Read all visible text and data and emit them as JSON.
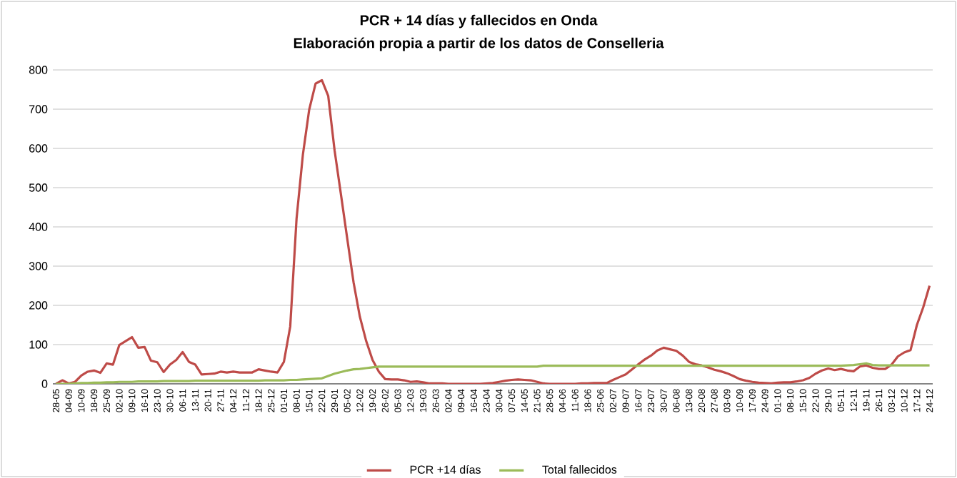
{
  "chart_data": {
    "type": "line",
    "title": "PCR + 14 días y fallecidos en Onda",
    "subtitle": "Elaboración propia a partir de los datos de Conselleria",
    "categories": [
      "28-05",
      null,
      "04-09",
      null,
      "10-09",
      null,
      "18-09",
      null,
      "25-09",
      null,
      "02-10",
      null,
      "09-10",
      null,
      "16-10",
      null,
      "23-10",
      null,
      "30-10",
      null,
      "06-11",
      null,
      "13-11",
      null,
      "20-11",
      null,
      "27-11",
      null,
      "04-12",
      null,
      "11-12",
      null,
      "18-12",
      null,
      "25-12",
      null,
      "01-01",
      null,
      "08-01",
      null,
      "15-01",
      null,
      "22-01",
      null,
      "29-01",
      null,
      "05-02",
      null,
      "12-02",
      null,
      "19-02",
      null,
      "26-02",
      null,
      "05-03",
      null,
      "12-03",
      null,
      "19-03",
      null,
      "26-03",
      null,
      "02-04",
      null,
      "09-04",
      null,
      "16-04",
      null,
      "23-04",
      null,
      "30-04",
      null,
      "07-05",
      null,
      "14-05",
      null,
      "21-05",
      null,
      "28-05",
      null,
      "04-06",
      null,
      "11-06",
      null,
      "18-06",
      null,
      "25-06",
      null,
      "02-07",
      null,
      "09-07",
      null,
      "16-07",
      null,
      "23-07",
      null,
      "30-07",
      null,
      "06-08",
      null,
      "13-08",
      null,
      "20-08",
      null,
      "27-08",
      null,
      "03-09",
      null,
      "10-09",
      null,
      "17-09",
      null,
      "24-09",
      null,
      "01-10",
      null,
      "08-10",
      null,
      "15-10",
      null,
      "22-10",
      null,
      "29-10",
      null,
      "05-11",
      null,
      "12-11",
      null,
      "19-11",
      null,
      "26-11",
      null,
      "03-12",
      null,
      "10-12",
      null,
      "17-12",
      null,
      "24-12"
    ],
    "series": [
      {
        "name": "PCR +14 días",
        "color": "#be4b48",
        "values": [
          0,
          9,
          1,
          5,
          21,
          31,
          34,
          28,
          52,
          49,
          99,
          109,
          119,
          92,
          94,
          59,
          55,
          30,
          49,
          61,
          81,
          56,
          49,
          24,
          25,
          26,
          31,
          29,
          31,
          29,
          29,
          29,
          37,
          34,
          31,
          29,
          56,
          146,
          421,
          584,
          699,
          765,
          774,
          734,
          596,
          484,
          371,
          259,
          171,
          109,
          61,
          31,
          12,
          11,
          11,
          9,
          5,
          6,
          4,
          1,
          1,
          1,
          0,
          0,
          0,
          0,
          0,
          0,
          1,
          2,
          5,
          8,
          10,
          11,
          10,
          9,
          5,
          1,
          0,
          0,
          0,
          0,
          0,
          1,
          1,
          2,
          2,
          2,
          10,
          17,
          24,
          37,
          50,
          62,
          72,
          85,
          92,
          88,
          84,
          72,
          56,
          50,
          47,
          42,
          36,
          32,
          27,
          20,
          12,
          8,
          5,
          3,
          2,
          1,
          3,
          4,
          4,
          6,
          9,
          15,
          26,
          34,
          39,
          35,
          38,
          34,
          32,
          44,
          47,
          41,
          38,
          38,
          49,
          70,
          80,
          86,
          150,
          195,
          250
        ]
      },
      {
        "name": "Total fallecidos",
        "color": "#9bbb59",
        "values": [
          0,
          0,
          0,
          1,
          2,
          2,
          3,
          3,
          4,
          4,
          5,
          5,
          5,
          6,
          6,
          6,
          6,
          7,
          7,
          7,
          7,
          7,
          8,
          8,
          8,
          8,
          8,
          8,
          8,
          8,
          8,
          8,
          8,
          9,
          9,
          9,
          9,
          10,
          10,
          11,
          12,
          13,
          14,
          20,
          26,
          30,
          34,
          37,
          38,
          40,
          42,
          44,
          44,
          44,
          44,
          44,
          44,
          44,
          44,
          44,
          44,
          44,
          44,
          44,
          44,
          44,
          44,
          44,
          44,
          44,
          44,
          44,
          44,
          44,
          44,
          44,
          44,
          46,
          46,
          46,
          46,
          46,
          46,
          46,
          46,
          46,
          46,
          46,
          46,
          46,
          46,
          46,
          46,
          46,
          46,
          46,
          46,
          46,
          46,
          46,
          46,
          46,
          46,
          46,
          46,
          46,
          46,
          46,
          46,
          46,
          46,
          46,
          46,
          46,
          46,
          46,
          46,
          46,
          46,
          46,
          46,
          46,
          46,
          46,
          46,
          47,
          48,
          50,
          52,
          48,
          47,
          47,
          47,
          47,
          47,
          47,
          47,
          47,
          47
        ]
      }
    ],
    "ylim": [
      0,
      800
    ],
    "yticks": [
      0,
      100,
      200,
      300,
      400,
      500,
      600,
      700,
      800
    ],
    "grid": "y",
    "legend": "bottom",
    "marker": "none",
    "line_style": "solid"
  }
}
